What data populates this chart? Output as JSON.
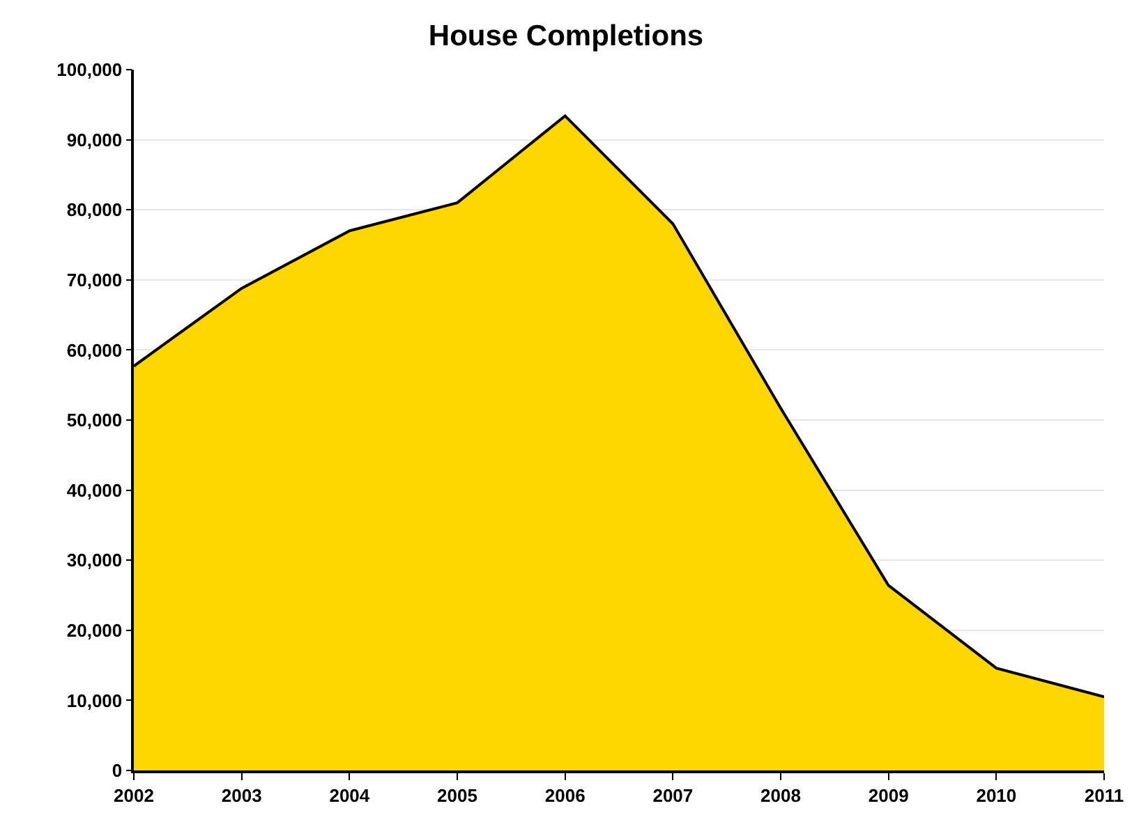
{
  "chart_data": {
    "type": "area",
    "title": "House Completions",
    "x": [
      2002,
      2003,
      2004,
      2005,
      2006,
      2007,
      2008,
      2009,
      2010,
      2011
    ],
    "series": [
      {
        "color": "#ffd700",
        "values": [
          57700,
          68800,
          77000,
          81000,
          93400,
          78000,
          51700,
          26400,
          14600,
          10500
        ]
      }
    ],
    "xlim": [
      2002,
      2011
    ],
    "xticks": [
      2002,
      2003,
      2004,
      2005,
      2006,
      2007,
      2008,
      2009,
      2010,
      2011
    ],
    "ylim": [
      0,
      100000
    ],
    "yticks": [
      0,
      {
        "value": 10000,
        "label": "10,000"
      },
      {
        "value": 20000,
        "label": "20,000"
      },
      {
        "value": 30000,
        "label": "30,000"
      },
      {
        "value": 40000,
        "label": "40,000"
      },
      {
        "value": 50000,
        "label": "50,000"
      },
      {
        "value": 60000,
        "label": "60,000"
      },
      {
        "value": 70000,
        "label": "70,000"
      },
      {
        "value": 80000,
        "label": "80,000"
      },
      {
        "value": 90000,
        "label": "90,000"
      },
      {
        "value": 100000,
        "label": "100,000"
      }
    ],
    "grid": "y"
  }
}
